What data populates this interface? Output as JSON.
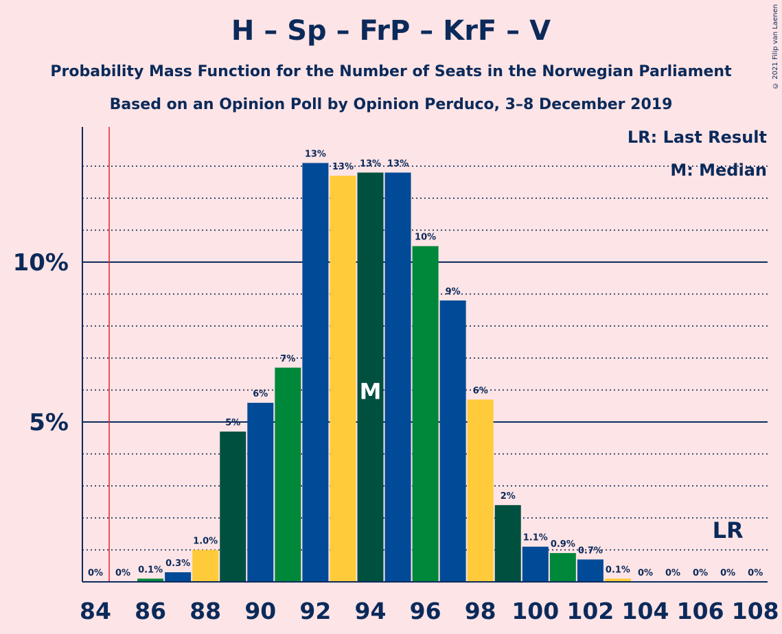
{
  "title": "H – Sp – FrP – KrF – V",
  "subtitle1": "Probability Mass Function for the Number of Seats in the Norwegian Parliament",
  "subtitle2": "Based on an Opinion Poll by Opinion Perduco, 3–8 December 2019",
  "copyright": "© 2021 Filip van Laenen",
  "legend": {
    "lr": "LR: Last Result",
    "m": "M: Median"
  },
  "chart_data": {
    "type": "bar",
    "x": [
      84,
      85,
      86,
      87,
      88,
      89,
      90,
      91,
      92,
      93,
      94,
      95,
      96,
      97,
      98,
      99,
      100,
      101,
      102,
      103,
      104,
      105,
      106,
      107,
      108
    ],
    "values": [
      0,
      0,
      0.1,
      0.3,
      1.0,
      4.7,
      5.6,
      6.7,
      13.1,
      12.7,
      12.8,
      12.8,
      10.5,
      8.8,
      5.7,
      2.4,
      1.1,
      0.9,
      0.7,
      0.1,
      0,
      0,
      0,
      0,
      0
    ],
    "labels": [
      "0%",
      "0%",
      "0.1%",
      "0.3%",
      "1.0%",
      "5%",
      "6%",
      "7%",
      "13%",
      "13%",
      "13%",
      "13%",
      "10%",
      "9%",
      "6%",
      "2%",
      "1.1%",
      "0.9%",
      "0.7%",
      "0.1%",
      "0%",
      "0%",
      "0%",
      "0%",
      "0%"
    ],
    "bar_colors": [
      "#0b2a5a",
      "#0b2a5a",
      "#00883a",
      "#004a97",
      "#ffcb3a",
      "#00503f",
      "#004a97",
      "#00883a",
      "#004a97",
      "#ffcb3a",
      "#00503f",
      "#004a97",
      "#00883a",
      "#004a97",
      "#ffcb3a",
      "#00503f",
      "#004a97",
      "#00883a",
      "#004a97",
      "#ffcb3a",
      "#00503f",
      "#004a97",
      "#00883a",
      "#004a97",
      "#ffcb3a"
    ],
    "xticks": [
      "84",
      "86",
      "88",
      "90",
      "92",
      "94",
      "96",
      "98",
      "100",
      "102",
      "104",
      "106",
      "108"
    ],
    "yticks": [
      {
        "value": 5,
        "label": "5%"
      },
      {
        "value": 10,
        "label": "10%"
      }
    ],
    "ylim": [
      0,
      14
    ],
    "last_result": 85,
    "last_result_label": "LR",
    "median": 94,
    "median_label": "M",
    "colors": {
      "axis": "#0b2a5a",
      "last_result_line": "#e8202a",
      "background": "#fde4e6"
    }
  }
}
